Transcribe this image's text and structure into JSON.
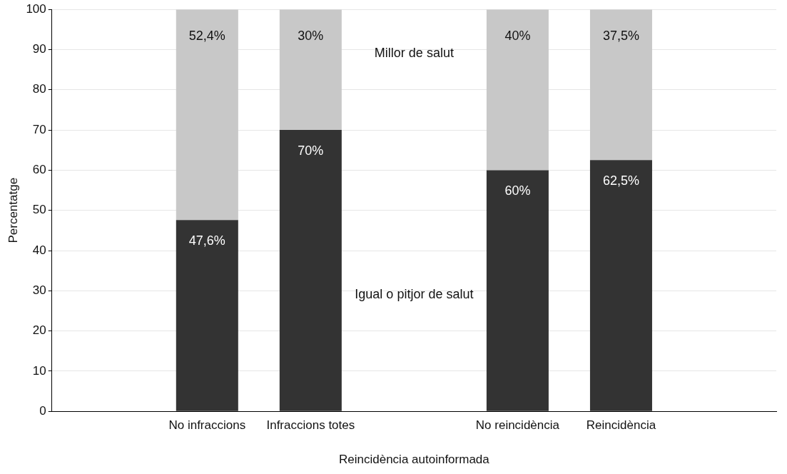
{
  "chart_data": {
    "type": "bar",
    "stacked": true,
    "xlabel": "Reincidència autoinformada",
    "ylabel": "Percentatge",
    "categories": [
      null,
      "No infraccions",
      "Infraccions totes",
      null,
      "No reincidència",
      "Reincidència",
      null
    ],
    "series": [
      {
        "name": "Igual o pitjor de salut",
        "color": "#333333",
        "values": [
          null,
          47.6,
          70,
          null,
          60,
          62.5,
          null
        ],
        "value_labels": [
          null,
          "47,6%",
          "70%",
          null,
          "60%",
          "62,5%",
          null
        ]
      },
      {
        "name": "Millor de salut",
        "color": "#c8c8c8",
        "values": [
          null,
          52.4,
          30,
          null,
          40,
          37.5,
          null
        ],
        "value_labels": [
          null,
          "52,4%",
          "30%",
          null,
          "40%",
          "37,5%",
          null
        ]
      }
    ],
    "ylim": [
      0,
      100
    ],
    "yticks": [
      0,
      10,
      20,
      30,
      40,
      50,
      60,
      70,
      80,
      90,
      100
    ],
    "grid": "y"
  }
}
